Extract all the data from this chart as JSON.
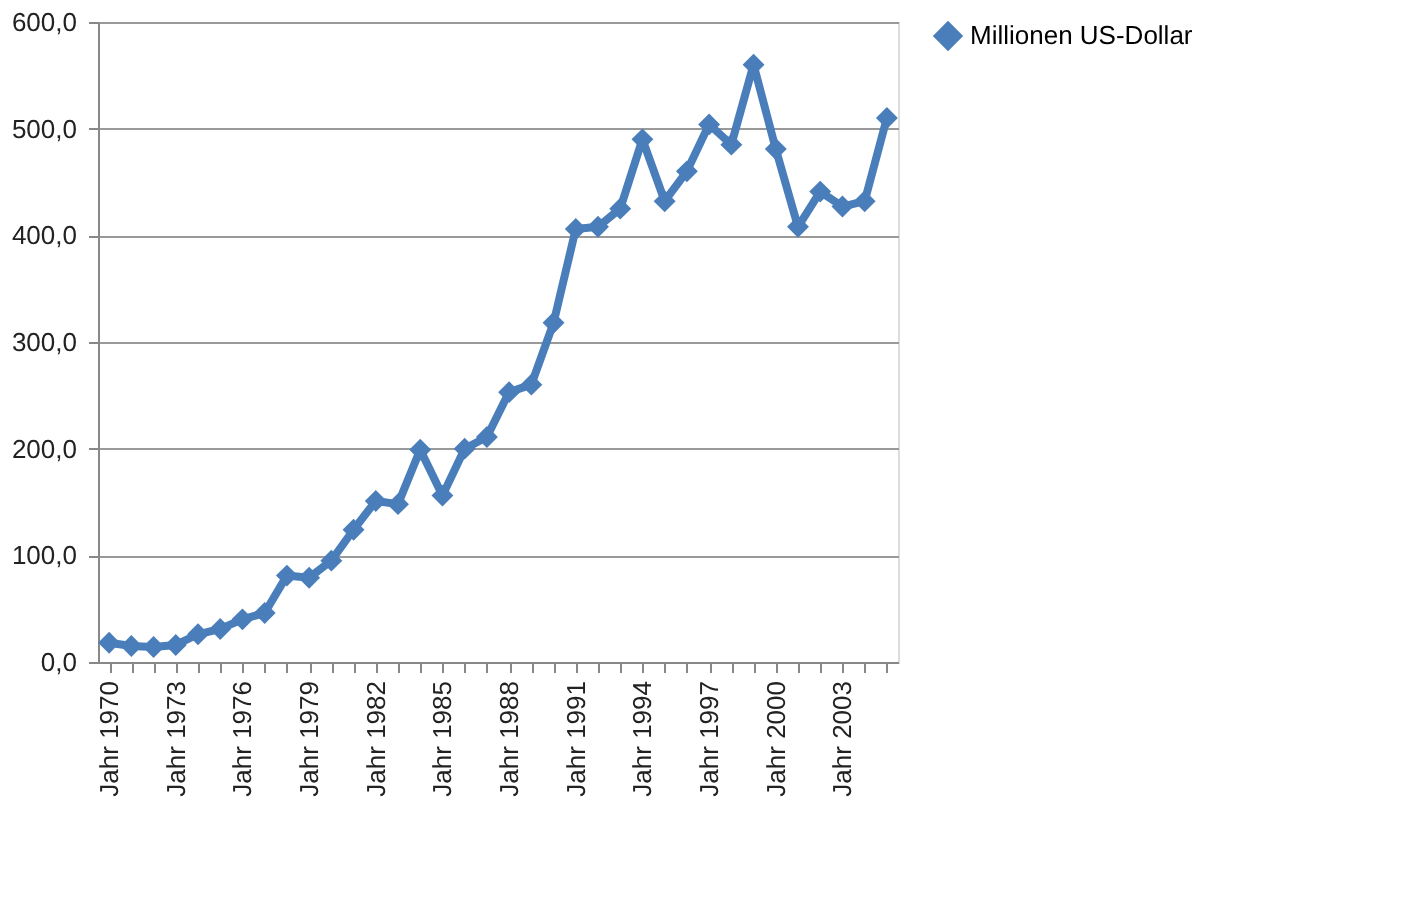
{
  "chart_data": {
    "type": "line",
    "categories": [
      "Jahr 1970",
      null,
      null,
      "Jahr 1973",
      null,
      null,
      "Jahr 1976",
      null,
      null,
      "Jahr 1979",
      null,
      null,
      "Jahr 1982",
      null,
      null,
      "Jahr 1985",
      null,
      null,
      "Jahr 1988",
      null,
      null,
      "Jahr 1991",
      null,
      null,
      "Jahr 1994",
      null,
      null,
      "Jahr 1997",
      null,
      null,
      "Jahr 2000",
      null,
      null,
      "Jahr 2003",
      null,
      null
    ],
    "series": [
      {
        "name": "Millionen US-Dollar",
        "color": "#4a7ebb",
        "values": [
          18,
          15,
          14,
          16,
          26,
          31,
          40,
          46,
          81,
          79,
          95,
          124,
          151,
          148,
          199,
          156,
          200,
          211,
          253,
          260,
          318,
          406,
          408,
          425,
          490,
          432,
          460,
          504,
          485,
          560,
          481,
          408,
          441,
          427,
          432,
          510
        ]
      }
    ],
    "ylim": [
      0,
      600
    ],
    "yticks": [
      {
        "value": 0,
        "label": "0,0"
      },
      {
        "value": 100,
        "label": "100,0"
      },
      {
        "value": 200,
        "label": "200,0"
      },
      {
        "value": 300,
        "label": "300,0"
      },
      {
        "value": 400,
        "label": "400,0"
      },
      {
        "value": 500,
        "label": "500,0"
      },
      {
        "value": 600,
        "label": "600,0"
      }
    ],
    "grid": "y",
    "legend": "right",
    "marker": "diamond",
    "line_style": "solid"
  }
}
